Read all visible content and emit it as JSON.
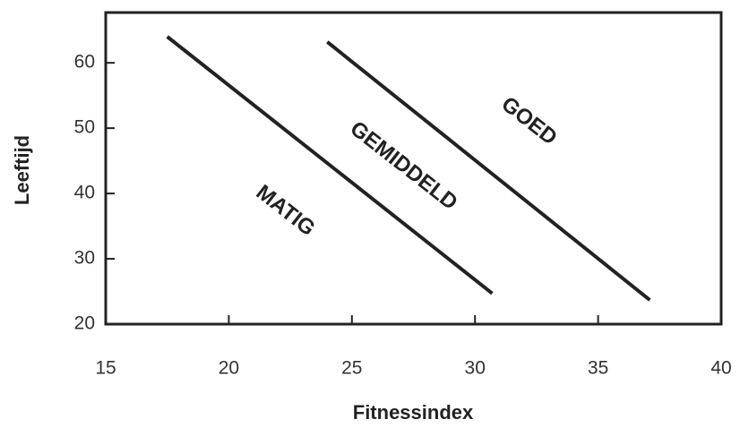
{
  "chart_data": {
    "type": "line",
    "x_label": "Fitnessindex",
    "y_label": "Leeftijd",
    "xlim": [
      15,
      40
    ],
    "xticks": [
      15,
      20,
      25,
      30,
      35,
      40
    ],
    "ylim": [
      20,
      67.7
    ],
    "yticks": [
      20,
      30,
      40,
      50,
      60
    ],
    "grid": false,
    "series": [
      {
        "color": "#222222",
        "x": [
          17.5,
          30.7
        ],
        "values": [
          64,
          24.7
        ]
      },
      {
        "color": "#222222",
        "x": [
          24.0,
          37.1
        ],
        "values": [
          63.2,
          23.7
        ]
      }
    ],
    "annotations": [
      "MATIG",
      "GEMIDDELD",
      "GOED"
    ]
  }
}
